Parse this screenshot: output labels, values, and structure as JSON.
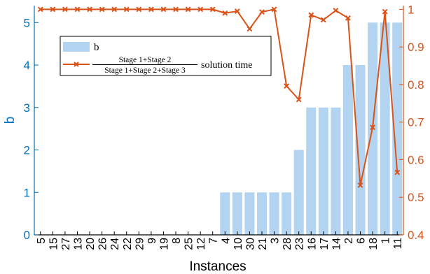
{
  "chart_data": {
    "type": "bar+line",
    "xlabel": "Instances",
    "categories": [
      "5",
      "15",
      "27",
      "13",
      "20",
      "26",
      "24",
      "22",
      "29",
      "9",
      "19",
      "8",
      "25",
      "12",
      "7",
      "4",
      "10",
      "30",
      "21",
      "3",
      "28",
      "23",
      "16",
      "17",
      "14",
      "2",
      "6",
      "18",
      "1",
      "11"
    ],
    "series": [
      {
        "name": "b",
        "type": "bar",
        "axis": "left",
        "color": "#b3d4f0",
        "values": [
          0,
          0,
          0,
          0,
          0,
          0,
          0,
          0,
          0,
          0,
          0,
          0,
          0,
          0,
          0,
          1,
          1,
          1,
          1,
          1,
          1,
          2,
          3,
          3,
          3,
          4,
          4,
          5,
          5,
          5
        ]
      },
      {
        "name_parts": {
          "num": "Stage 1+Stage 2",
          "den": "Stage 1+Stage 2+Stage 3",
          "suffix": "solution time"
        },
        "type": "line",
        "marker": "x",
        "axis": "right",
        "color": "#d95319",
        "values": [
          1.0,
          1.0,
          1.0,
          1.0,
          1.0,
          1.0,
          1.0,
          1.0,
          1.0,
          1.0,
          1.0,
          1.0,
          1.0,
          1.0,
          1.0,
          0.99,
          0.995,
          0.948,
          0.993,
          1.0,
          0.796,
          0.76,
          0.985,
          0.972,
          0.997,
          0.977,
          0.532,
          0.686,
          0.994,
          0.566
        ]
      }
    ],
    "yleft": {
      "label": "b",
      "lim": [
        0,
        5.4
      ],
      "ticks": [
        0,
        1,
        2,
        3,
        4,
        5
      ],
      "color": "#0072bd"
    },
    "yright": {
      "lim": [
        0.4,
        1.01
      ],
      "ticks": [
        0.4,
        0.5,
        0.6,
        0.7,
        0.8,
        0.9,
        1
      ],
      "tick_labels": [
        "0.4",
        "0.5",
        "0.6",
        "0.7",
        "0.8",
        "0.9",
        "1"
      ],
      "color": "#d95319"
    },
    "legend": {
      "placement": "upper-left",
      "line_labels": [
        "b"
      ]
    }
  }
}
